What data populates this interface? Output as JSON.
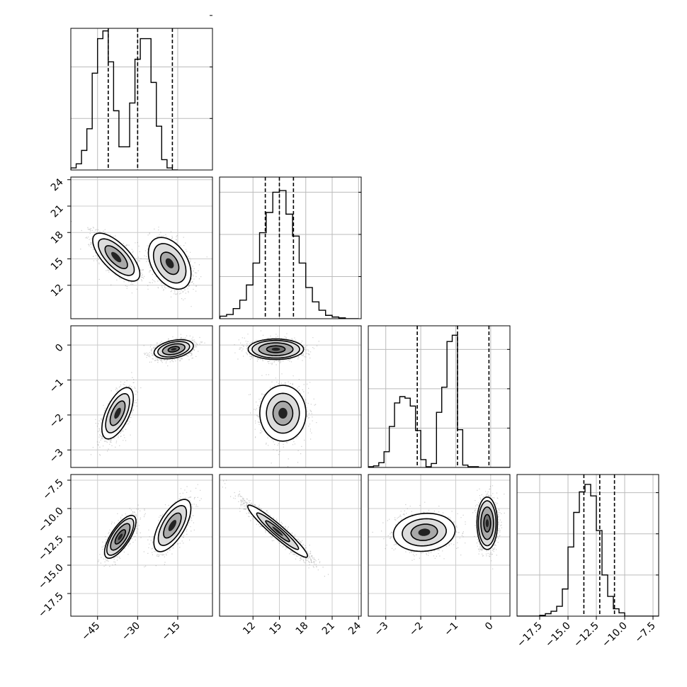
{
  "chart_data": {
    "type": "corner",
    "style": {
      "grid": true,
      "line_color": "#000000",
      "scatter_color": "#555555",
      "quantiles_linestyle": "dashed"
    },
    "parameters": [
      {
        "range": [
          -55,
          -2
        ],
        "ticks": [
          -45,
          -30,
          -15
        ],
        "tick_labels": [
          "−45",
          "−30",
          "−15"
        ],
        "quantiles": [
          -41,
          -30,
          -17
        ],
        "hist": {
          "start": -55,
          "width": 2,
          "values": [
            4,
            12,
            38,
            80,
            188,
            255,
            270,
            210,
            115,
            45,
            45,
            130,
            215,
            255,
            255,
            170,
            85,
            20,
            4,
            0
          ]
        }
      },
      {
        "range": [
          8.2,
          24.3
        ],
        "ticks": [
          12,
          15,
          18,
          21,
          24
        ],
        "tick_labels": [
          "12",
          "15",
          "18",
          "21",
          "24"
        ],
        "quantiles": [
          13.4,
          15.0,
          16.6
        ],
        "hist": {
          "start": 8.25,
          "width": 0.75,
          "values": [
            3,
            5,
            12,
            22,
            40,
            66,
            102,
            126,
            150,
            152,
            124,
            98,
            66,
            37,
            20,
            10,
            4,
            2,
            1,
            0,
            0
          ]
        }
      },
      {
        "range": [
          -3.5,
          0.55
        ],
        "ticks": [
          -3,
          -2,
          -1,
          0
        ],
        "tick_labels": [
          "−3",
          "−2",
          "−1",
          "0"
        ],
        "quantiles": [
          -2.1,
          -0.95,
          -0.05
        ],
        "hist": {
          "start": -3.5,
          "width": 0.15,
          "values": [
            1,
            2,
            6,
            20,
            52,
            82,
            90,
            88,
            78,
            47,
            10,
            1,
            5,
            70,
            102,
            160,
            168,
            48,
            3,
            1,
            1,
            0,
            0,
            0,
            0,
            0,
            0
          ]
        }
      },
      {
        "range": [
          -19.5,
          -7
        ],
        "ticks": [
          -17.5,
          -15.0,
          -12.5,
          -10.0,
          -7.5
        ],
        "tick_labels": [
          "−17.5",
          "−15.0",
          "−12.5",
          "−10.0",
          "−7.5"
        ],
        "quantiles": [
          -13.6,
          -12.2,
          -10.9
        ],
        "hist": {
          "start": -19.5,
          "width": 0.5,
          "values": [
            0,
            0,
            0,
            0,
            1,
            3,
            6,
            12,
            33,
            84,
            126,
            151,
            160,
            146,
            104,
            50,
            24,
            9,
            4,
            0,
            0,
            0,
            0,
            0,
            0
          ]
        }
      }
    ],
    "hist_y_ticks": [
      [
        0,
        100,
        200,
        300
      ],
      [
        0,
        50,
        100,
        150
      ],
      [
        0,
        50,
        100,
        150
      ],
      [
        0,
        50,
        100,
        150
      ]
    ],
    "hist_y_max": [
      275,
      168,
      180,
      172
    ],
    "pairs": [
      {
        "x": 0,
        "y": 1,
        "clusters": [
          {
            "cx": -38,
            "cy": 15.2,
            "sx": 4.2,
            "sy": 1.3,
            "rho": -0.7,
            "contours": [
              1.0,
              1.6,
              2.1
            ],
            "count": 1300
          },
          {
            "cx": -18,
            "cy": 14.5,
            "sx": 3.8,
            "sy": 1.4,
            "rho": -0.4,
            "contours": [
              0.9,
              1.6,
              2.1
            ],
            "count": 1300
          }
        ]
      },
      {
        "x": 0,
        "y": 2,
        "clusters": [
          {
            "cx": -37.5,
            "cy": -1.95,
            "sx": 2.8,
            "sy": 0.35,
            "rho": 0.6,
            "contours": [
              1.0,
              1.6,
              2.1
            ],
            "count": 1200
          },
          {
            "cx": -16.5,
            "cy": -0.12,
            "sx": 3.5,
            "sy": 0.13,
            "rho": 0.35,
            "contours": [
              0.6,
              1.2,
              1.7,
              2.1
            ],
            "count": 1500
          }
        ]
      },
      {
        "x": 1,
        "y": 2,
        "clusters": [
          {
            "cx": 14.6,
            "cy": -0.12,
            "sx": 1.5,
            "sy": 0.14,
            "rho": 0.0,
            "contours": [
              0.7,
              1.3,
              1.8,
              2.1
            ],
            "count": 1500
          },
          {
            "cx": 15.4,
            "cy": -1.95,
            "sx": 1.25,
            "sy": 0.38,
            "rho": 0.0,
            "contours": [
              0.9,
              1.5,
              2.1
            ],
            "count": 1200
          }
        ]
      },
      {
        "x": 0,
        "y": 3,
        "clusters": [
          {
            "cx": -36.5,
            "cy": -12.5,
            "sx": 2.8,
            "sy": 0.9,
            "rho": 0.72,
            "contours": [
              0.7,
              1.3,
              1.8,
              2.1
            ],
            "count": 1300
          },
          {
            "cx": -17,
            "cy": -11.5,
            "sx": 3.3,
            "sy": 1.1,
            "rho": 0.65,
            "contours": [
              1.0,
              1.6,
              2.1
            ],
            "count": 1300
          }
        ]
      },
      {
        "x": 1,
        "y": 3,
        "clusters": [
          {
            "cx": 14.8,
            "cy": -12.0,
            "sx": 1.7,
            "sy": 1.15,
            "rho": -0.95,
            "contours": [
              0.8,
              1.4,
              2.0
            ],
            "count": 2600
          }
        ]
      },
      {
        "x": 2,
        "y": 3,
        "clusters": [
          {
            "cx": -1.9,
            "cy": -12.1,
            "sx": 0.42,
            "sy": 0.8,
            "rho": 0.1,
            "contours": [
              0.9,
              1.5,
              2.1
            ],
            "count": 1200
          },
          {
            "cx": -0.1,
            "cy": -11.3,
            "sx": 0.14,
            "sy": 1.1,
            "rho": 0.0,
            "contours": [
              0.7,
              1.3,
              1.8,
              2.1
            ],
            "count": 1500
          }
        ]
      }
    ]
  }
}
